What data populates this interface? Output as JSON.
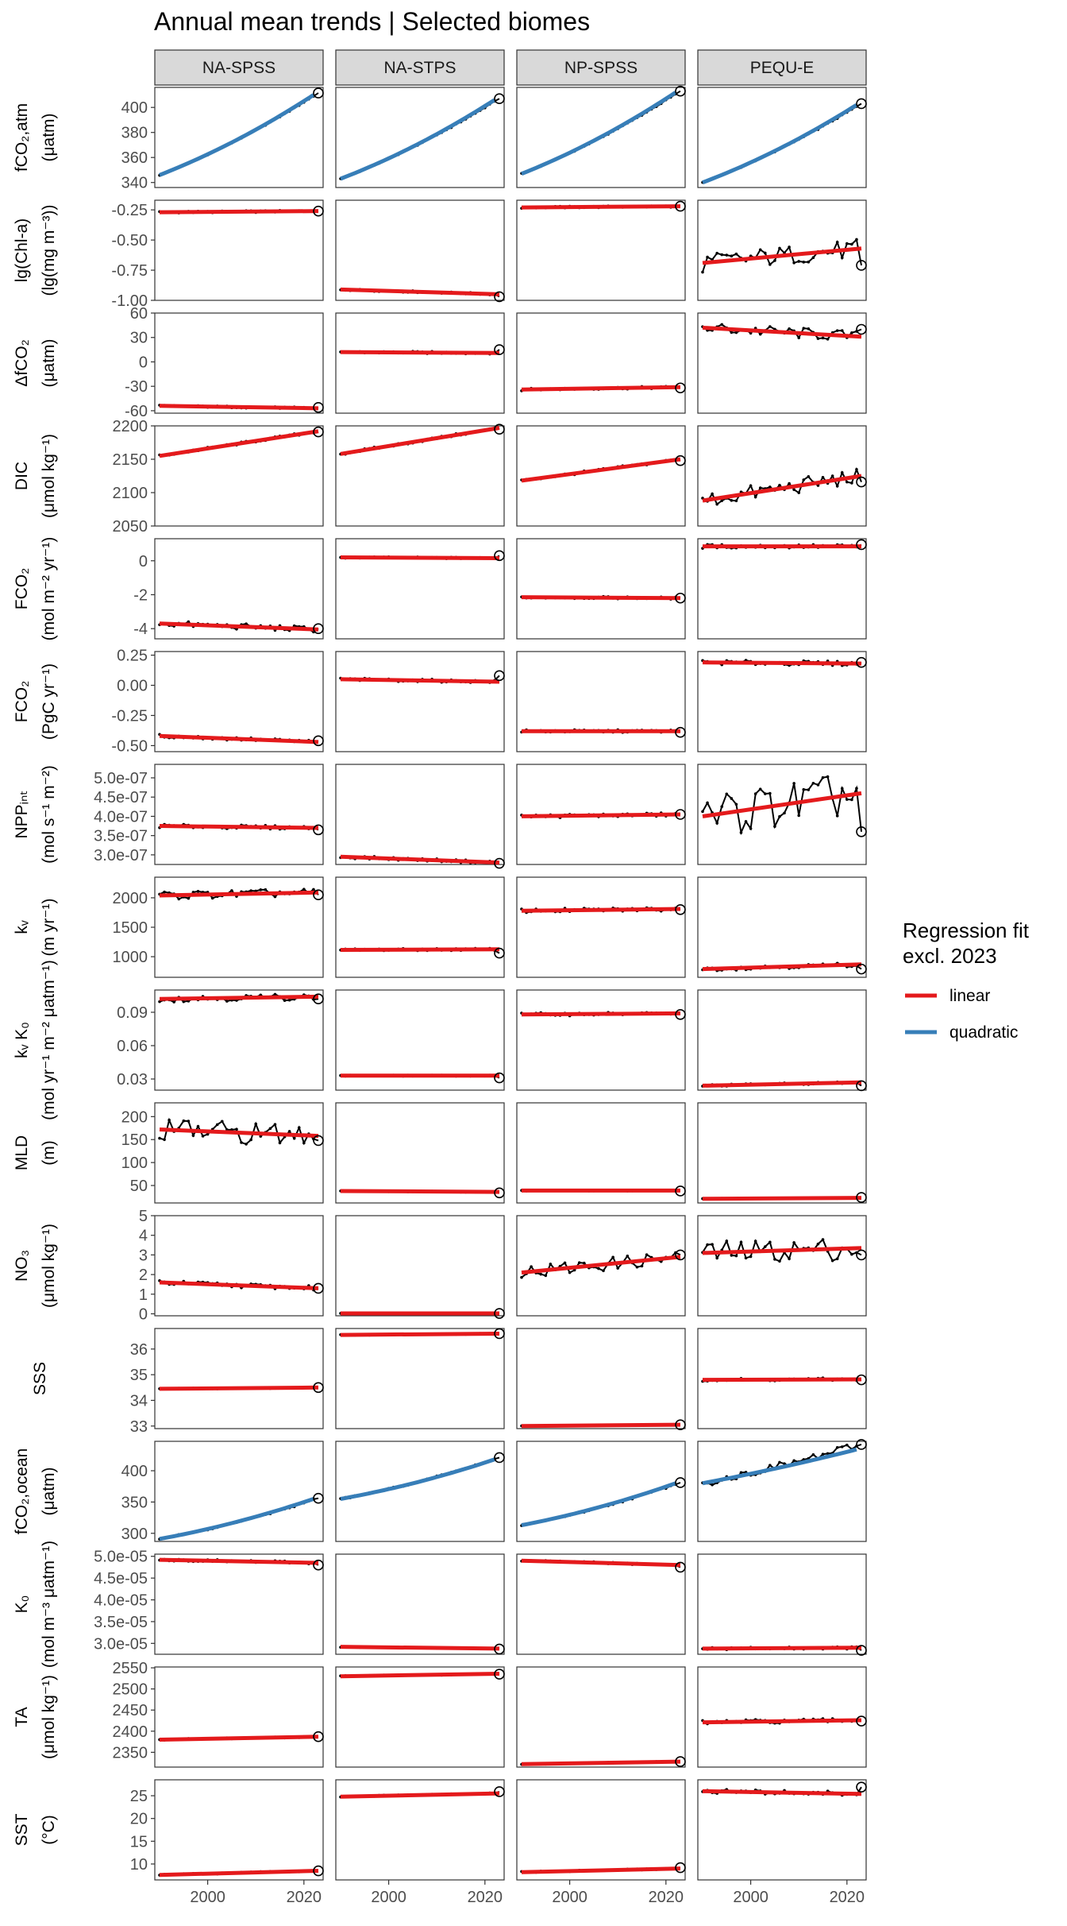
{
  "chart_data": {
    "type": "line",
    "title": "Annual mean trends | Selected biomes",
    "panels": [
      "NA-SPSS",
      "NA-STPS",
      "NP-SPSS",
      "PEQU-E"
    ],
    "x_range": [
      1990,
      2023
    ],
    "x_ticks": [
      2000,
      2020
    ],
    "x_tick_labels": [
      "2000",
      "2020"
    ],
    "colors": {
      "linear": "#e41a1c",
      "quadratic": "#377eb8",
      "observed": "#000000",
      "panel_border": "#333333",
      "strip_fill": "#d9d9d9"
    },
    "legend": {
      "title_lines": [
        "Regression fit",
        "excl. 2023"
      ],
      "entries": [
        {
          "label": "linear",
          "color": "#e41a1c"
        },
        {
          "label": "quadratic",
          "color": "#377eb8"
        }
      ],
      "position": "right"
    },
    "rows": [
      {
        "label_lines": [
          "fCO₂,atm",
          "(μatm)"
        ],
        "ylim": [
          336,
          416
        ],
        "y_ticks": [
          340,
          360,
          380,
          400
        ],
        "y_tick_labels": [
          "340",
          "360",
          "380",
          "400"
        ],
        "fit": "quadratic",
        "series": [
          {
            "panel": "NA-SPSS",
            "start": 346,
            "end": 411.5,
            "fit_end": 410,
            "noise": 0.4,
            "curv": 0.25
          },
          {
            "panel": "NA-STPS",
            "start": 343,
            "end": 407,
            "fit_end": 406,
            "noise": 0.4,
            "curv": 0.25
          },
          {
            "panel": "NP-SPSS",
            "start": 347,
            "end": 413,
            "fit_end": 412,
            "noise": 0.4,
            "curv": 0.25
          },
          {
            "panel": "PEQU-E",
            "start": 340,
            "end": 403,
            "fit_end": 402,
            "noise": 0.4,
            "curv": 0.25
          }
        ]
      },
      {
        "label_lines": [
          "lg(Chl-a)",
          "(lg(mg m⁻³))"
        ],
        "ylim": [
          -1.0,
          -0.17
        ],
        "y_ticks": [
          -1.0,
          -0.75,
          -0.5,
          -0.25
        ],
        "y_tick_labels": [
          "-1.00",
          "-0.75",
          "-0.50",
          "-0.25"
        ],
        "fit": "linear",
        "series": [
          {
            "panel": "NA-SPSS",
            "start": -0.27,
            "end": -0.26,
            "last": -0.26,
            "noise": 0.008
          },
          {
            "panel": "NA-STPS",
            "start": -0.91,
            "end": -0.95,
            "last": -0.97,
            "noise": 0.008
          },
          {
            "panel": "NP-SPSS",
            "start": -0.23,
            "end": -0.22,
            "last": -0.22,
            "noise": 0.008
          },
          {
            "panel": "PEQU-E",
            "start": -0.69,
            "end": -0.57,
            "last": -0.71,
            "noise": 0.08
          }
        ]
      },
      {
        "label_lines": [
          "ΔfCO₂",
          "(μatm)"
        ],
        "ylim": [
          -63,
          60
        ],
        "y_ticks": [
          -60,
          -30,
          0,
          30,
          60
        ],
        "y_tick_labels": [
          "-60",
          "-30",
          "0",
          "30",
          "60"
        ],
        "fit": "linear",
        "series": [
          {
            "panel": "NA-SPSS",
            "start": -54,
            "end": -57,
            "last": -56,
            "noise": 1.2
          },
          {
            "panel": "NA-STPS",
            "start": 12,
            "end": 11,
            "last": 15,
            "noise": 1.5
          },
          {
            "panel": "NP-SPSS",
            "start": -34,
            "end": -31,
            "last": -32,
            "noise": 1.5
          },
          {
            "panel": "PEQU-E",
            "start": 42,
            "end": 31,
            "last": 40,
            "noise": 7
          }
        ]
      },
      {
        "label_lines": [
          "DIC",
          "(μmol kg⁻¹)"
        ],
        "ylim": [
          2050,
          2200
        ],
        "y_ticks": [
          2050,
          2100,
          2150,
          2200
        ],
        "y_tick_labels": [
          "2050",
          "2100",
          "2150",
          "2200"
        ],
        "fit": "linear",
        "series": [
          {
            "panel": "NA-SPSS",
            "start": 2155,
            "end": 2192,
            "last": 2191,
            "noise": 2
          },
          {
            "panel": "NA-STPS",
            "start": 2158,
            "end": 2197,
            "last": 2195,
            "noise": 2
          },
          {
            "panel": "NP-SPSS",
            "start": 2118,
            "end": 2150,
            "last": 2148,
            "noise": 2
          },
          {
            "panel": "PEQU-E",
            "start": 2088,
            "end": 2125,
            "last": 2116,
            "noise": 12
          }
        ]
      },
      {
        "label_lines": [
          "FCO₂",
          "(mol m⁻² yr⁻¹)"
        ],
        "ylim": [
          -4.6,
          1.3
        ],
        "y_ticks": [
          -4,
          -2,
          0
        ],
        "y_tick_labels": [
          "-4",
          "-2",
          "0"
        ],
        "fit": "linear",
        "series": [
          {
            "panel": "NA-SPSS",
            "start": -3.7,
            "end": -4.05,
            "last": -4.0,
            "noise": 0.18
          },
          {
            "panel": "NA-STPS",
            "start": 0.2,
            "end": 0.15,
            "last": 0.3,
            "noise": 0.05
          },
          {
            "panel": "NP-SPSS",
            "start": -2.15,
            "end": -2.2,
            "last": -2.2,
            "noise": 0.07
          },
          {
            "panel": "PEQU-E",
            "start": 0.85,
            "end": 0.85,
            "last": 0.95,
            "noise": 0.12
          }
        ]
      },
      {
        "label_lines": [
          "FCO₂",
          "(PgC yr⁻¹)"
        ],
        "ylim": [
          -0.55,
          0.28
        ],
        "y_ticks": [
          -0.5,
          -0.25,
          0.0,
          0.25
        ],
        "y_tick_labels": [
          "-0.50",
          "-0.25",
          "0.00",
          "0.25"
        ],
        "fit": "linear",
        "series": [
          {
            "panel": "NA-SPSS",
            "start": -0.42,
            "end": -0.47,
            "last": -0.46,
            "noise": 0.015
          },
          {
            "panel": "NA-STPS",
            "start": 0.05,
            "end": 0.03,
            "last": 0.08,
            "noise": 0.012
          },
          {
            "panel": "NP-SPSS",
            "start": -0.38,
            "end": -0.38,
            "last": -0.39,
            "noise": 0.012
          },
          {
            "panel": "PEQU-E",
            "start": 0.19,
            "end": 0.18,
            "last": 0.19,
            "noise": 0.02
          }
        ]
      },
      {
        "label_lines": [
          "NPPᵢₙₜ",
          "(mol s⁻¹ m⁻²)"
        ],
        "ylim": [
          2.75e-07,
          5.35e-07
        ],
        "y_ticks": [
          3e-07,
          3.5e-07,
          4e-07,
          4.5e-07,
          5e-07
        ],
        "y_tick_labels": [
          "3.0e-07",
          "3.5e-07",
          "4.0e-07",
          "4.5e-07",
          "5.0e-07"
        ],
        "fit": "linear",
        "series": [
          {
            "panel": "NA-SPSS",
            "start": 3.75e-07,
            "end": 3.7e-07,
            "last": 3.65e-07,
            "noise": 5e-09
          },
          {
            "panel": "NA-STPS",
            "start": 2.95e-07,
            "end": 2.8e-07,
            "last": 2.78e-07,
            "noise": 4e-09
          },
          {
            "panel": "NP-SPSS",
            "start": 4e-07,
            "end": 4.05e-07,
            "last": 4.05e-07,
            "noise": 5e-09
          },
          {
            "panel": "PEQU-E",
            "start": 4e-07,
            "end": 4.6e-07,
            "last": 3.6e-07,
            "noise": 6e-08
          }
        ]
      },
      {
        "label_lines": [
          "kᵥ",
          "(m yr⁻¹)"
        ],
        "ylim": [
          650,
          2350
        ],
        "y_ticks": [
          1000,
          1500,
          2000
        ],
        "y_tick_labels": [
          "1000",
          "1500",
          "2000"
        ],
        "fit": "linear",
        "series": [
          {
            "panel": "NA-SPSS",
            "start": 2040,
            "end": 2090,
            "last": 2050,
            "noise": 70
          },
          {
            "panel": "NA-STPS",
            "start": 1115,
            "end": 1125,
            "last": 1060,
            "noise": 20
          },
          {
            "panel": "NP-SPSS",
            "start": 1780,
            "end": 1810,
            "last": 1800,
            "noise": 35
          },
          {
            "panel": "PEQU-E",
            "start": 790,
            "end": 870,
            "last": 790,
            "noise": 35
          }
        ]
      },
      {
        "label_lines": [
          "kᵥ K₀",
          "(mol yr⁻¹ m⁻² μatm⁻¹)"
        ],
        "ylim": [
          0.02,
          0.11
        ],
        "y_ticks": [
          0.03,
          0.06,
          0.09
        ],
        "y_tick_labels": [
          "0.03",
          "0.06",
          "0.09"
        ],
        "fit": "linear",
        "series": [
          {
            "panel": "NA-SPSS",
            "start": 0.102,
            "end": 0.104,
            "last": 0.102,
            "noise": 0.003
          },
          {
            "panel": "NA-STPS",
            "start": 0.033,
            "end": 0.033,
            "last": 0.031,
            "noise": 0.0005
          },
          {
            "panel": "NP-SPSS",
            "start": 0.088,
            "end": 0.089,
            "last": 0.088,
            "noise": 0.0015
          },
          {
            "panel": "PEQU-E",
            "start": 0.024,
            "end": 0.027,
            "last": 0.024,
            "noise": 0.001
          }
        ]
      },
      {
        "label_lines": [
          "MLD",
          "(m)"
        ],
        "ylim": [
          12,
          230
        ],
        "y_ticks": [
          50,
          100,
          150,
          200
        ],
        "y_tick_labels": [
          "50",
          "100",
          "150",
          "200"
        ],
        "fit": "linear",
        "series": [
          {
            "panel": "NA-SPSS",
            "start": 172,
            "end": 158,
            "last": 148,
            "noise": 25
          },
          {
            "panel": "NA-STPS",
            "start": 38,
            "end": 36,
            "last": 34,
            "noise": 1
          },
          {
            "panel": "NP-SPSS",
            "start": 39,
            "end": 39,
            "last": 38,
            "noise": 1
          },
          {
            "panel": "PEQU-E",
            "start": 21,
            "end": 23,
            "last": 24,
            "noise": 1
          }
        ]
      },
      {
        "label_lines": [
          "NO₃",
          "(μmol kg⁻¹)"
        ],
        "ylim": [
          -0.1,
          5.0
        ],
        "y_ticks": [
          0,
          1,
          2,
          3,
          4,
          5
        ],
        "y_tick_labels": [
          "0",
          "1",
          "2",
          "3",
          "4",
          "5"
        ],
        "fit": "linear",
        "series": [
          {
            "panel": "NA-SPSS",
            "start": 1.6,
            "end": 1.3,
            "last": 1.3,
            "noise": 0.12
          },
          {
            "panel": "NA-STPS",
            "start": 0.02,
            "end": 0.02,
            "last": 0.02,
            "noise": 0.005
          },
          {
            "panel": "NP-SPSS",
            "start": 2.1,
            "end": 2.9,
            "last": 3.0,
            "noise": 0.35
          },
          {
            "panel": "PEQU-E",
            "start": 3.1,
            "end": 3.35,
            "last": 3.0,
            "noise": 0.6
          }
        ]
      },
      {
        "label_lines": [
          "SSS"
        ],
        "ylim": [
          32.9,
          36.8
        ],
        "y_ticks": [
          33,
          34,
          35,
          36
        ],
        "y_tick_labels": [
          "33",
          "34",
          "35",
          "36"
        ],
        "fit": "linear",
        "series": [
          {
            "panel": "NA-SPSS",
            "start": 34.45,
            "end": 34.5,
            "last": 34.5,
            "noise": 0.02
          },
          {
            "panel": "NA-STPS",
            "start": 36.55,
            "end": 36.6,
            "last": 36.6,
            "noise": 0.02
          },
          {
            "panel": "NP-SPSS",
            "start": 33.0,
            "end": 33.05,
            "last": 33.05,
            "noise": 0.01
          },
          {
            "panel": "PEQU-E",
            "start": 34.8,
            "end": 34.82,
            "last": 34.8,
            "noise": 0.06
          }
        ]
      },
      {
        "label_lines": [
          "fCO₂,ocean",
          "(μatm)"
        ],
        "ylim": [
          287,
          447
        ],
        "y_ticks": [
          300,
          350,
          400
        ],
        "y_tick_labels": [
          "300",
          "350",
          "400"
        ],
        "fit": "quadratic",
        "series": [
          {
            "panel": "NA-SPSS",
            "start": 291,
            "end": 356,
            "fit_end": 355,
            "noise": 1.5,
            "curv": 0.3
          },
          {
            "panel": "NA-STPS",
            "start": 355,
            "end": 421,
            "fit_end": 418,
            "noise": 1.5,
            "curv": 0.3
          },
          {
            "panel": "NP-SPSS",
            "start": 313,
            "end": 381,
            "fit_end": 380,
            "noise": 1.5,
            "curv": 0.3
          },
          {
            "panel": "PEQU-E",
            "start": 380,
            "end": 442,
            "fit_end": 434,
            "noise": 6,
            "curv": 0.15
          }
        ]
      },
      {
        "label_lines": [
          "K₀",
          "(mol m⁻³ μatm⁻¹)"
        ],
        "ylim": [
          2.75e-05,
          5.05e-05
        ],
        "y_ticks": [
          3e-05,
          3.5e-05,
          4e-05,
          4.5e-05,
          5e-05
        ],
        "y_tick_labels": [
          "3.0e-05",
          "3.5e-05",
          "4.0e-05",
          "4.5e-05",
          "5.0e-05"
        ],
        "fit": "linear",
        "series": [
          {
            "panel": "NA-SPSS",
            "start": 4.92e-05,
            "end": 4.85e-05,
            "last": 4.8e-05,
            "noise": 3e-07
          },
          {
            "panel": "NA-STPS",
            "start": 2.92e-05,
            "end": 2.88e-05,
            "last": 2.87e-05,
            "noise": 1e-07
          },
          {
            "panel": "NP-SPSS",
            "start": 4.9e-05,
            "end": 4.8e-05,
            "last": 4.75e-05,
            "noise": 2e-07
          },
          {
            "panel": "PEQU-E",
            "start": 2.88e-05,
            "end": 2.9e-05,
            "last": 2.84e-05,
            "noise": 3e-07
          }
        ]
      },
      {
        "label_lines": [
          "TA",
          "(μmol kg⁻¹)"
        ],
        "ylim": [
          2315,
          2552
        ],
        "y_ticks": [
          2350,
          2400,
          2450,
          2500,
          2550
        ],
        "y_tick_labels": [
          "2350",
          "2400",
          "2450",
          "2500",
          "2550"
        ],
        "fit": "linear",
        "series": [
          {
            "panel": "NA-SPSS",
            "start": 2380,
            "end": 2387,
            "last": 2387,
            "noise": 1.5
          },
          {
            "panel": "NA-STPS",
            "start": 2530,
            "end": 2536,
            "last": 2535,
            "noise": 1.5
          },
          {
            "panel": "NP-SPSS",
            "start": 2322,
            "end": 2328,
            "last": 2328,
            "noise": 1
          },
          {
            "panel": "PEQU-E",
            "start": 2421,
            "end": 2426,
            "last": 2424,
            "noise": 5
          }
        ]
      },
      {
        "label_lines": [
          "SST",
          "(°C)"
        ],
        "ylim": [
          6.5,
          28.5
        ],
        "y_ticks": [
          10,
          15,
          20,
          25
        ],
        "y_tick_labels": [
          "10",
          "15",
          "20",
          "25"
        ],
        "fit": "linear",
        "series": [
          {
            "panel": "NA-SPSS",
            "start": 7.6,
            "end": 8.5,
            "last": 8.5,
            "noise": 0.15
          },
          {
            "panel": "NA-STPS",
            "start": 24.8,
            "end": 25.5,
            "last": 25.9,
            "noise": 0.15
          },
          {
            "panel": "NP-SPSS",
            "start": 8.2,
            "end": 9.0,
            "last": 9.2,
            "noise": 0.15
          },
          {
            "panel": "PEQU-E",
            "start": 26.0,
            "end": 25.4,
            "last": 26.9,
            "noise": 0.5
          }
        ]
      }
    ]
  }
}
